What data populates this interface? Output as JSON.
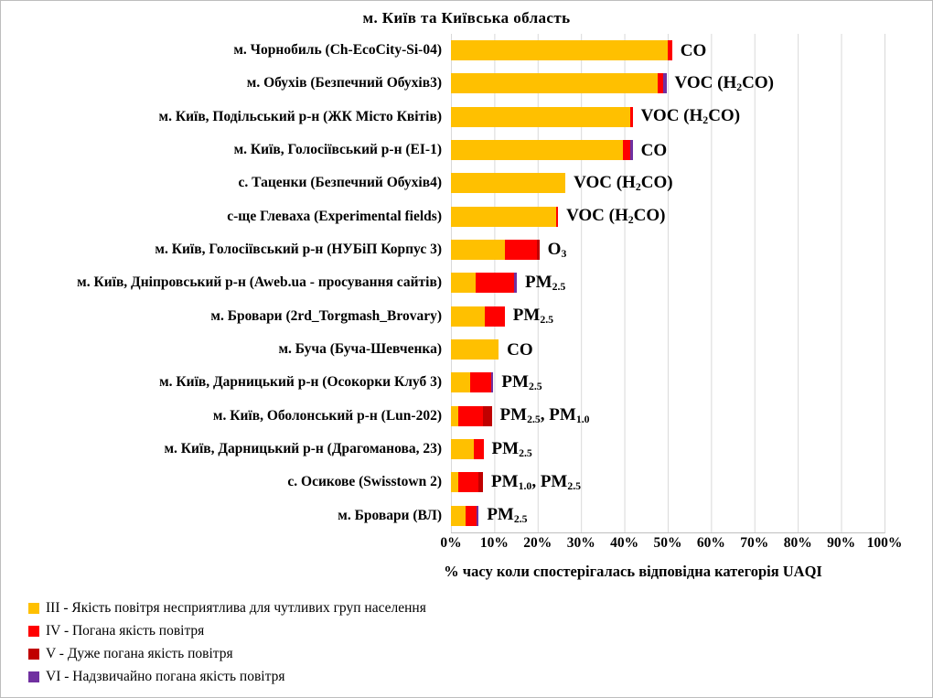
{
  "title": "м. Київ  та Київська  область",
  "axis": {
    "ticks": [
      "0%",
      "10%",
      "20%",
      "30%",
      "40%",
      "50%",
      "60%",
      "70%",
      "80%",
      "90%",
      "100%"
    ],
    "label": "%  часу коли спостерігалась відповідна категорія UAQI",
    "max": 100
  },
  "colors": {
    "III": "#FFC000",
    "IV": "#FF0000",
    "V": "#C00000",
    "VI": "#7030A0"
  },
  "legend": [
    {
      "key": "III",
      "color": "#FFC000",
      "label": "III - Якість повітря несприятлива для чутливих груп населення"
    },
    {
      "key": "IV",
      "color": "#FF0000",
      "label": "IV - Погана якість повітря"
    },
    {
      "key": "V",
      "color": "#C00000",
      "label": "V - Дуже погана якість повітря"
    },
    {
      "key": "VI",
      "color": "#7030A0",
      "label": "VI - Надзвичайно погана якість повітря"
    }
  ],
  "chart_data": {
    "type": "bar",
    "orientation": "horizontal",
    "stacked": true,
    "grid": true,
    "xlim": [
      0,
      100
    ],
    "title": "м. Київ та Київська область",
    "xlabel": "% часу коли спостерігалась відповідна категорія UAQI",
    "series_names": [
      "III",
      "IV",
      "V",
      "VI"
    ],
    "rows": [
      {
        "station": "м. Чорнобиль (Ch-EcoCity-Si-04)",
        "pollutant": "CO",
        "values": {
          "III": 50.0,
          "IV": 1.0,
          "V": 0,
          "VI": 0
        }
      },
      {
        "station": "м. Обухів (Безпечний Обухів3)",
        "pollutant": "VOC (H_{2}CO)",
        "values": {
          "III": 47.6,
          "IV": 1.3,
          "V": 0,
          "VI": 0.8
        }
      },
      {
        "station": "м. Київ, Подільський р-н (ЖК Місто Квітів)",
        "pollutant": "VOC (H_{2}CO)",
        "values": {
          "III": 41.4,
          "IV": 0.5,
          "V": 0,
          "VI": 0
        }
      },
      {
        "station": "м. Київ, Голосіївський р-н (EI-1)",
        "pollutant": "CO",
        "values": {
          "III": 39.7,
          "IV": 1.6,
          "V": 0,
          "VI": 0.6
        }
      },
      {
        "station": "с. Таценки (Безпечний Обухів4)",
        "pollutant": "VOC (H_{2}CO)",
        "values": {
          "III": 26.4,
          "IV": 0,
          "V": 0,
          "VI": 0
        }
      },
      {
        "station": "с-ще Глеваха (Experimental fields)",
        "pollutant": "VOC (H_{2}CO)",
        "values": {
          "III": 24.3,
          "IV": 0.4,
          "V": 0,
          "VI": 0
        }
      },
      {
        "station": "м. Київ, Голосіївський р-н (НУБіП Корпус 3)",
        "pollutant": "O_{3}",
        "values": {
          "III": 12.5,
          "IV": 7.4,
          "V": 0.5,
          "VI": 0
        }
      },
      {
        "station": "м. Київ, Дніпровський р-н (Aweb.ua - просування сайтів)",
        "pollutant": "PM_{2.5}",
        "values": {
          "III": 5.7,
          "IV": 8.9,
          "V": 0,
          "VI": 0.6
        }
      },
      {
        "station": "м. Бровари (2rd_Torgmash_Brovary)",
        "pollutant": "PM_{2.5}",
        "values": {
          "III": 7.9,
          "IV": 4.5,
          "V": 0,
          "VI": 0
        }
      },
      {
        "station": "м. Буча (Буча-Шевченка)",
        "pollutant": "CO",
        "values": {
          "III": 11.0,
          "IV": 0,
          "V": 0,
          "VI": 0
        }
      },
      {
        "station": "м. Київ, Дарницький р-н (Осокорки Клуб 3)",
        "pollutant": "PM_{2.5}",
        "values": {
          "III": 4.4,
          "IV": 4.9,
          "V": 0,
          "VI": 0.5
        }
      },
      {
        "station": "м. Київ, Оболонський р-н (Lun-202)",
        "pollutant": "PM_{2.5}, PM_{1.0}",
        "values": {
          "III": 1.7,
          "IV": 5.6,
          "V": 2.1,
          "VI": 0
        }
      },
      {
        "station": "м. Київ, Дарницький р-н (Драгоманова, 23)",
        "pollutant": "PM_{2.5}",
        "values": {
          "III": 5.3,
          "IV": 2.2,
          "V": 0,
          "VI": 0
        }
      },
      {
        "station": "с. Осикове (Swisstown 2)",
        "pollutant": "PM_{1.0}, PM_{2.5}",
        "values": {
          "III": 1.7,
          "IV": 4.6,
          "V": 1.1,
          "VI": 0
        }
      },
      {
        "station": "м. Бровари (ВЛ)",
        "pollutant": "PM_{2.5}",
        "values": {
          "III": 3.4,
          "IV": 2.5,
          "V": 0,
          "VI": 0.5
        }
      }
    ]
  }
}
